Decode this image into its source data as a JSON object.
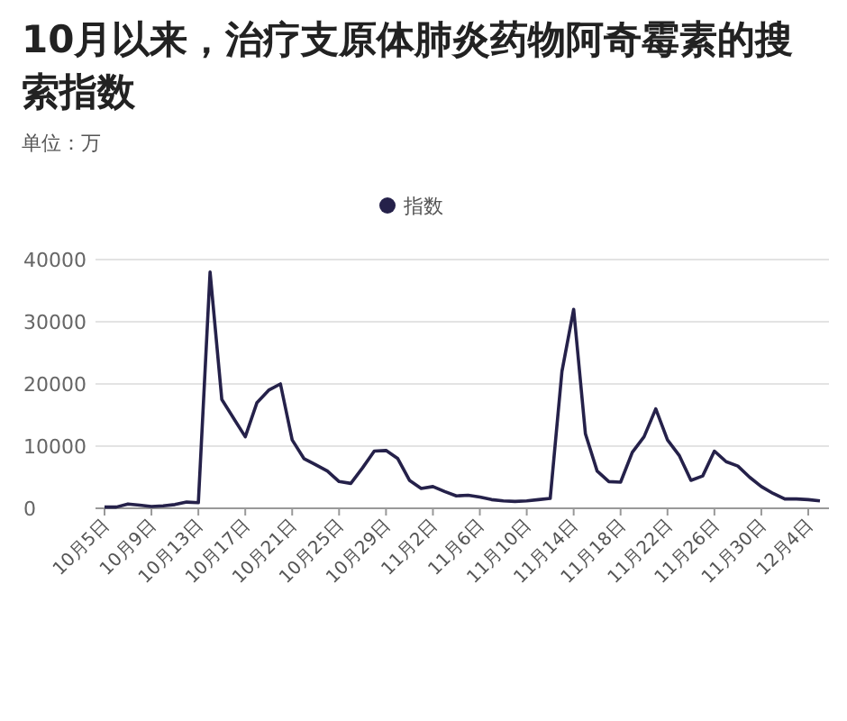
{
  "chart_data": {
    "type": "line",
    "title": "10月以来，治疗支原体肺炎药物阿奇霉素的搜索指数",
    "subtitle": "单位：万",
    "categories": [
      "10月5日",
      null,
      null,
      null,
      "10月9日",
      null,
      null,
      null,
      "10月13日",
      null,
      null,
      null,
      "10月17日",
      null,
      null,
      null,
      "10月21日",
      null,
      null,
      null,
      "10月25日",
      null,
      null,
      null,
      "10月29日",
      null,
      null,
      null,
      "11月2日",
      null,
      null,
      null,
      "11月6日",
      null,
      null,
      null,
      "11月10日",
      null,
      null,
      null,
      "11月14日",
      null,
      null,
      null,
      "11月18日",
      null,
      null,
      null,
      "11月22日",
      null,
      null,
      null,
      "11月26日",
      null,
      null,
      null,
      "11月30日",
      null,
      null,
      null,
      "12月4日",
      null
    ],
    "series": [
      {
        "name": "指数",
        "color": "#25214a",
        "values": [
          200,
          200,
          700,
          500,
          300,
          400,
          600,
          1000,
          900,
          38000,
          17500,
          14500,
          11500,
          17000,
          19000,
          20000,
          11000,
          8000,
          7000,
          6000,
          4300,
          4000,
          6500,
          9200,
          9300,
          8000,
          4500,
          3200,
          3500,
          2700,
          2000,
          2100,
          1800,
          1400,
          1200,
          1100,
          1200,
          1400,
          1600,
          22000,
          32000,
          12000,
          6000,
          4300,
          4200,
          9000,
          11500,
          16000,
          11000,
          8500,
          4500,
          5200,
          9200,
          7500,
          6800,
          5000,
          3500,
          2400,
          1500,
          1500,
          1400,
          1200
        ]
      }
    ],
    "ylim": [
      0,
      40000
    ],
    "yticks": [
      0,
      10000,
      20000,
      30000,
      40000
    ],
    "grid": "y",
    "legend": "top"
  }
}
